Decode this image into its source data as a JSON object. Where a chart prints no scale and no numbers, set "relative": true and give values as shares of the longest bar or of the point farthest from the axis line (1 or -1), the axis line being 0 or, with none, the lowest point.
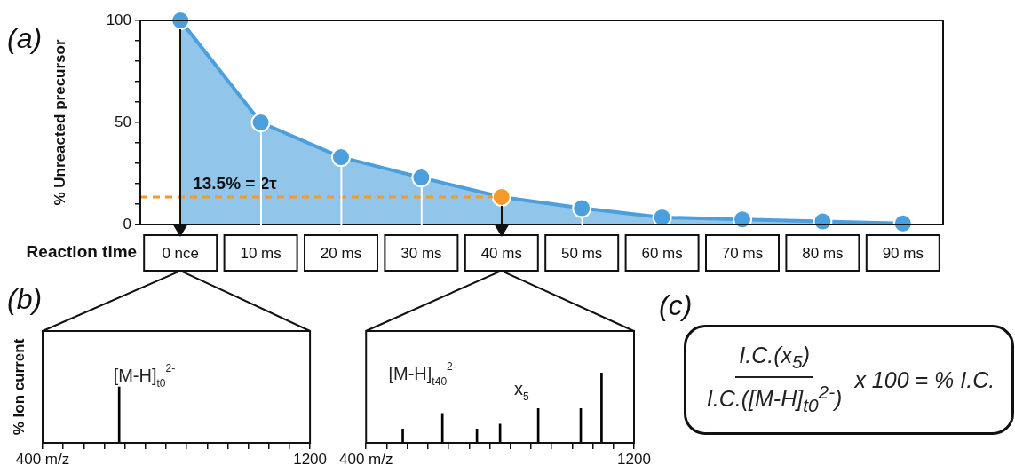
{
  "chart_data": [
    {
      "type": "area",
      "title": "(a)",
      "xlabel": "Reaction time",
      "ylabel": "% Unreacted precursor",
      "categories": [
        "0 nce",
        "10 ms",
        "20 ms",
        "30 ms",
        "40 ms",
        "50 ms",
        "60 ms",
        "70 ms",
        "80 ms",
        "90 ms"
      ],
      "values": [
        100,
        50,
        33,
        23,
        13.5,
        8,
        3.5,
        2.5,
        1.5,
        0.5
      ],
      "color": "#4a9fdc",
      "colors": [
        "#4a9fdc",
        "#4a9fdc",
        "#4a9fdc",
        "#4a9fdc",
        "#f39a2b",
        "#4a9fdc",
        "#4a9fdc",
        "#4a9fdc",
        "#4a9fdc",
        "#4a9fdc"
      ],
      "marker": "circle",
      "ylim": [
        0,
        100
      ],
      "yticks": [
        0,
        {
          "value": 10,
          "label": null
        },
        {
          "value": 20,
          "label": null
        },
        {
          "value": 30,
          "label": null
        },
        {
          "value": 40,
          "label": null
        },
        50,
        {
          "value": 60,
          "label": null
        },
        {
          "value": 70,
          "label": null
        },
        {
          "value": 80,
          "label": null
        },
        {
          "value": 90,
          "label": null
        },
        100
      ],
      "ref_lines": [
        {
          "axis": "y",
          "value": 13.5,
          "label": "13.5% = 2τ",
          "color": "#f39a2b",
          "line_style": "dashed"
        }
      ]
    },
    {
      "type": "bar",
      "title": "(b)",
      "ylabel": "% Ion current",
      "x": [
        629
      ],
      "values": [
        1
      ],
      "relative": true,
      "color": "#000000",
      "xlim": [
        400,
        1200
      ],
      "xticks": [
        {
          "value": 400,
          "label": "400 m/z"
        },
        {
          "value": 461.5,
          "label": null
        },
        {
          "value": 523.1,
          "label": null
        },
        {
          "value": 584.6,
          "label": null
        },
        {
          "value": 646.2,
          "label": null
        },
        {
          "value": 707.7,
          "label": null
        },
        {
          "value": 769.2,
          "label": null
        },
        {
          "value": 830.8,
          "label": null
        },
        {
          "value": 892.3,
          "label": null
        },
        {
          "value": 953.8,
          "label": null
        },
        {
          "value": 1015.4,
          "label": null
        },
        {
          "value": 1076.9,
          "label": null
        },
        {
          "value": 1138.5,
          "label": null
        },
        1200
      ],
      "tick_labels": "x",
      "annotations": [
        "[M-H]$_{t0}$$^{2-}$"
      ]
    },
    {
      "type": "bar",
      "x": [
        509.5,
        627.8,
        731,
        800,
        914,
        1041,
        1103
      ],
      "values": [
        0.2,
        0.42,
        0.2,
        0.27,
        0.49,
        0.49,
        1
      ],
      "relative": true,
      "color": "#000000",
      "xlim": [
        400,
        1200
      ],
      "xticks": [
        {
          "value": 400,
          "label": "400 m/z"
        },
        {
          "value": 461.5,
          "label": null
        },
        {
          "value": 523.1,
          "label": null
        },
        {
          "value": 584.6,
          "label": null
        },
        {
          "value": 646.2,
          "label": null
        },
        {
          "value": 707.7,
          "label": null
        },
        {
          "value": 769.2,
          "label": null
        },
        {
          "value": 830.8,
          "label": null
        },
        {
          "value": 892.3,
          "label": null
        },
        {
          "value": 953.8,
          "label": null
        },
        {
          "value": 1015.4,
          "label": null
        },
        {
          "value": 1076.9,
          "label": null
        },
        {
          "value": 1138.5,
          "label": null
        },
        1200
      ],
      "tick_labels": "x",
      "annotations": [
        "[M-H]$_{t40}$$^{2-}$",
        "x$_{5}$"
      ]
    },
    {
      "type": "other",
      "title": "(c)",
      "annotations": [
        "I.C.(x$_{5}$)",
        "I.C.([M-H]$_{t0}$$^{2-}$)",
        "x 100 = % I.C."
      ]
    }
  ]
}
